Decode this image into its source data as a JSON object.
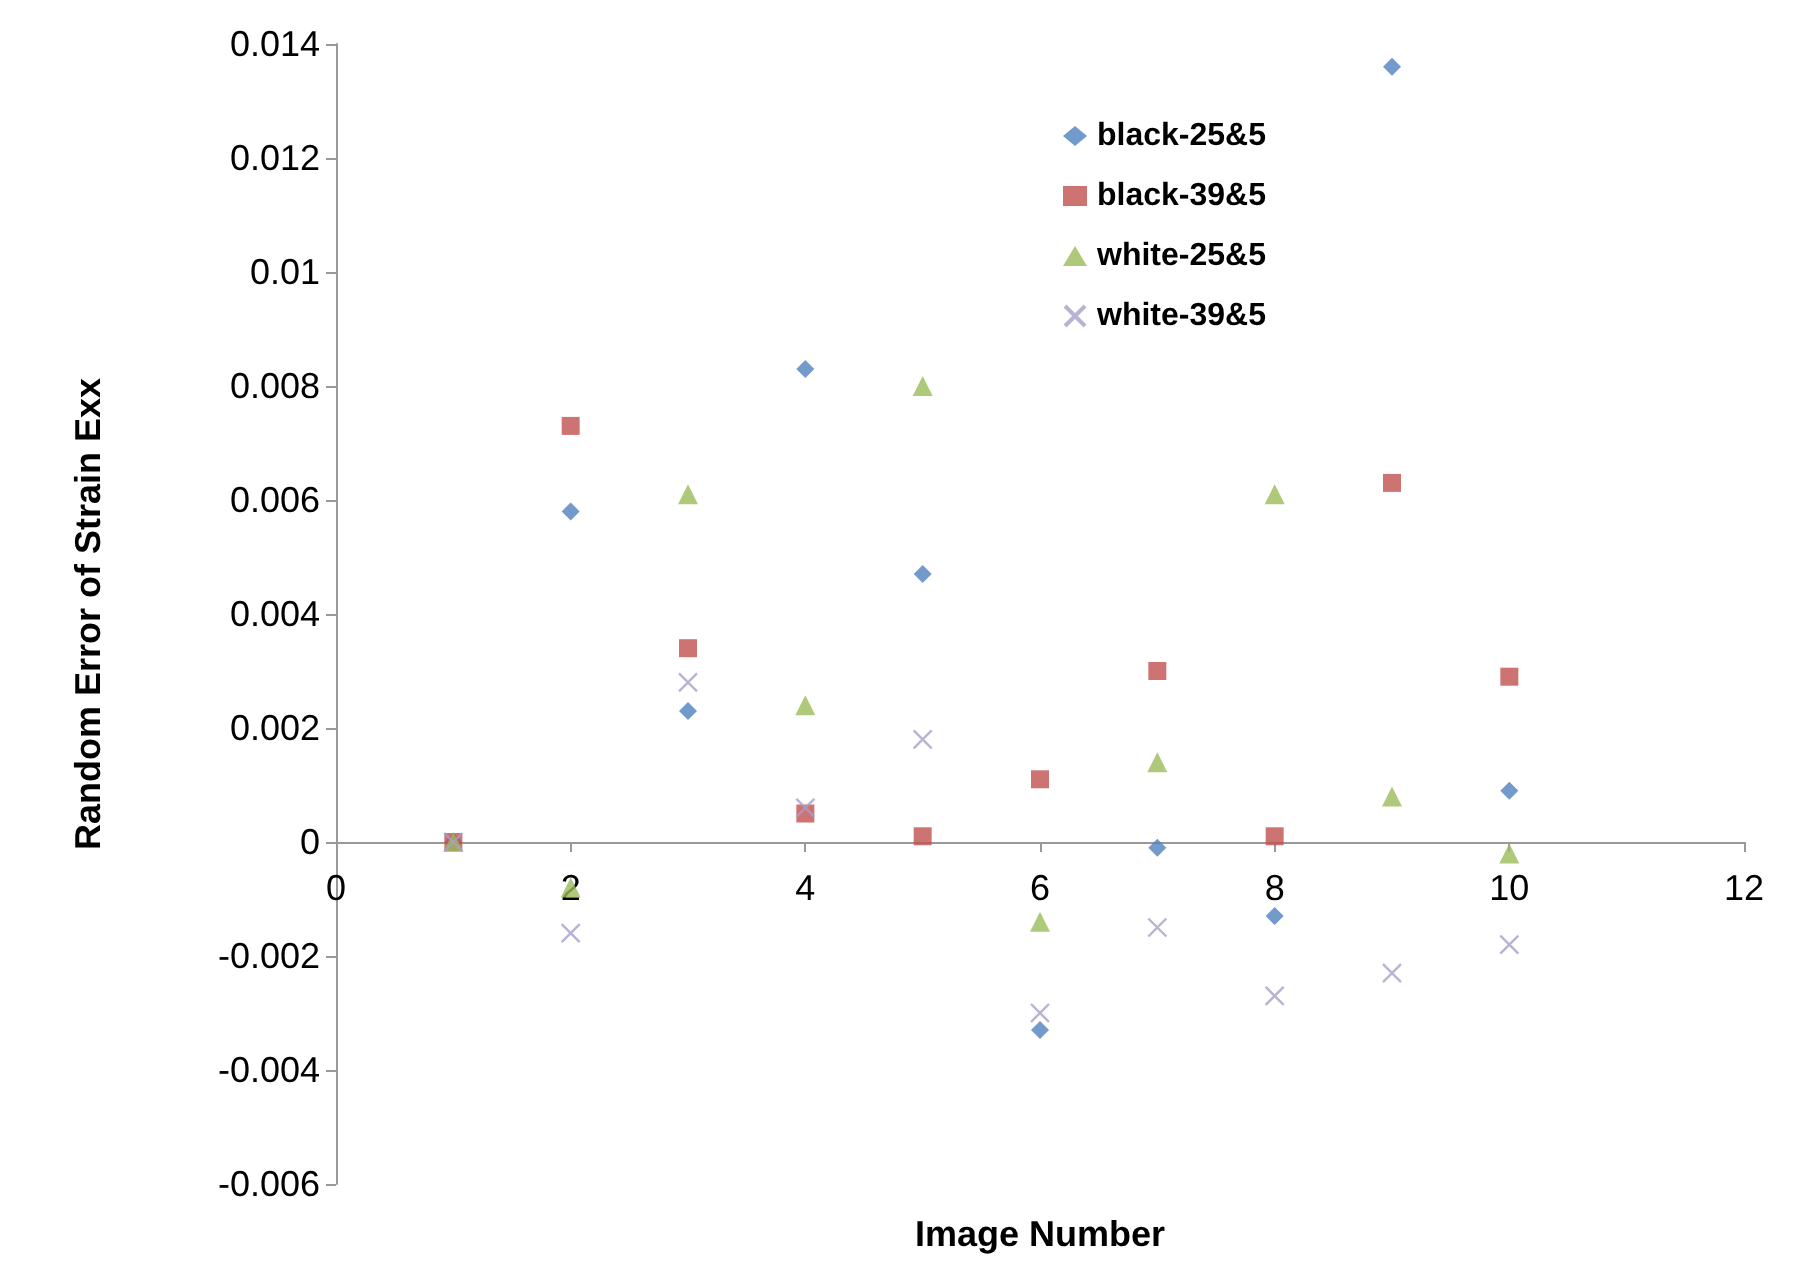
{
  "chart_data": {
    "type": "scatter",
    "xlabel": "Image Number",
    "ylabel": "Random Error of Strain Exx",
    "x": [
      1,
      2,
      3,
      4,
      5,
      6,
      7,
      8,
      9,
      10
    ],
    "series": [
      {
        "name": "black-25&5",
        "color": "#4f81bd",
        "marker": "diamond",
        "values": [
          0,
          0.0058,
          0.0023,
          0.0083,
          0.0047,
          -0.0033,
          -0.0001,
          -0.0013,
          0.0136,
          0.0009
        ]
      },
      {
        "name": "black-39&5",
        "color": "#c0504d",
        "marker": "square",
        "values": [
          0,
          0.0073,
          0.0034,
          0.0005,
          0.0001,
          0.0011,
          0.003,
          0.0001,
          0.0063,
          0.0029
        ]
      },
      {
        "name": "white-25&5",
        "color": "#9bbb59",
        "marker": "triangle",
        "values": [
          0,
          -0.0008,
          0.0061,
          0.0024,
          0.008,
          -0.0014,
          0.0014,
          0.0061,
          0.0008,
          -0.0002
        ]
      },
      {
        "name": "white-39&5",
        "color": "#a6a0c8",
        "marker": "cross",
        "values": [
          0,
          -0.0016,
          0.0028,
          0.0006,
          0.0018,
          -0.003,
          -0.0015,
          -0.0027,
          -0.0023,
          -0.0018
        ]
      }
    ],
    "xlim": [
      0,
      12
    ],
    "xticks": [
      0,
      2,
      4,
      6,
      8,
      10,
      12
    ],
    "ylim": [
      -0.006,
      0.014
    ],
    "yticks": [
      -0.006,
      -0.004,
      -0.002,
      0,
      0.002,
      0.004,
      0.006,
      0.008,
      0.01,
      0.012,
      0.014
    ],
    "grid": false,
    "legend": "top right"
  }
}
